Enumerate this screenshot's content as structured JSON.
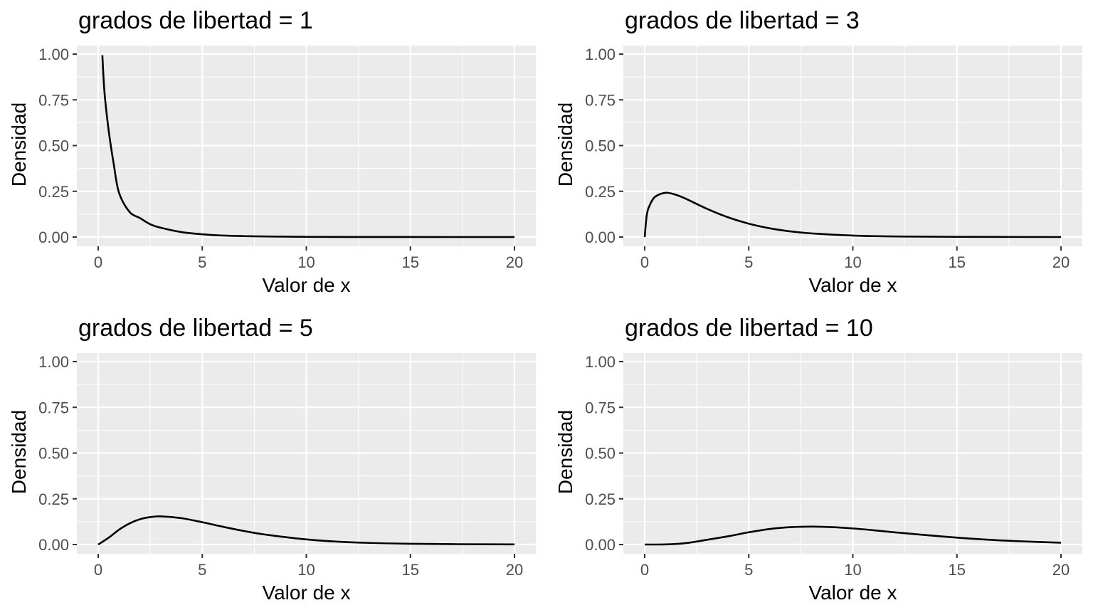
{
  "chart_data": [
    {
      "type": "line",
      "title": "grados de libertad = 1",
      "xlabel": "Valor de x",
      "ylabel": "Densidad",
      "xlim": [
        0,
        20
      ],
      "ylim": [
        0,
        1
      ],
      "xticks": [
        "0",
        "5",
        "10",
        "15",
        "20"
      ],
      "yticks": [
        "0.00",
        "0.25",
        "0.50",
        "0.75",
        "1.00"
      ],
      "grid": true,
      "x": [
        0.2,
        0.3,
        0.5,
        0.75,
        1,
        1.5,
        2,
        2.5,
        3,
        4,
        5,
        6,
        8,
        10,
        12,
        15,
        20
      ],
      "y": [
        0.994,
        0.794,
        0.585,
        0.396,
        0.242,
        0.138,
        0.104,
        0.07,
        0.051,
        0.027,
        0.015,
        0.008,
        0.003,
        0.001,
        0.0004,
        0.0001,
        0.0
      ],
      "color": "#000000"
    },
    {
      "type": "line",
      "title": "grados de libertad = 3",
      "xlabel": "Valor de x",
      "ylabel": "Densidad",
      "xlim": [
        0,
        20
      ],
      "ylim": [
        0,
        1
      ],
      "xticks": [
        "0",
        "5",
        "10",
        "15",
        "20"
      ],
      "yticks": [
        "0.00",
        "0.25",
        "0.50",
        "0.75",
        "1.00"
      ],
      "grid": true,
      "x": [
        0,
        0.1,
        0.25,
        0.5,
        1,
        1.5,
        2,
        3,
        4,
        5,
        6,
        7,
        8,
        10,
        12,
        15,
        20
      ],
      "y": [
        0,
        0.12,
        0.176,
        0.22,
        0.242,
        0.231,
        0.208,
        0.154,
        0.108,
        0.073,
        0.048,
        0.031,
        0.02,
        0.008,
        0.003,
        0.001,
        0.0
      ],
      "color": "#000000"
    },
    {
      "type": "line",
      "title": "grados de libertad = 5",
      "xlabel": "Valor de x",
      "ylabel": "Densidad",
      "xlim": [
        0,
        20
      ],
      "ylim": [
        0,
        1
      ],
      "xticks": [
        "0",
        "5",
        "10",
        "15",
        "20"
      ],
      "yticks": [
        "0.00",
        "0.25",
        "0.50",
        "0.75",
        "1.00"
      ],
      "grid": true,
      "x": [
        0,
        0.5,
        1,
        1.5,
        2,
        2.5,
        3,
        4,
        5,
        6,
        7,
        8,
        10,
        12,
        15,
        20
      ],
      "y": [
        0,
        0.037,
        0.081,
        0.115,
        0.138,
        0.15,
        0.154,
        0.144,
        0.122,
        0.097,
        0.074,
        0.055,
        0.028,
        0.013,
        0.004,
        0.0006
      ],
      "color": "#000000"
    },
    {
      "type": "line",
      "title": "grados de libertad = 10",
      "xlabel": "Valor de x",
      "ylabel": "Densidad",
      "xlim": [
        0,
        20
      ],
      "ylim": [
        0,
        1
      ],
      "xticks": [
        "0",
        "5",
        "10",
        "15",
        "20"
      ],
      "yticks": [
        "0.00",
        "0.25",
        "0.50",
        "0.75",
        "1.00"
      ],
      "grid": true,
      "x": [
        0,
        1,
        2,
        3,
        4,
        5,
        6,
        7,
        8,
        9,
        10,
        11,
        12,
        14,
        16,
        18,
        20
      ],
      "y": [
        0,
        0.0008,
        0.008,
        0.026,
        0.045,
        0.067,
        0.085,
        0.095,
        0.098,
        0.095,
        0.088,
        0.078,
        0.067,
        0.047,
        0.03,
        0.018,
        0.01
      ],
      "color": "#000000"
    }
  ]
}
